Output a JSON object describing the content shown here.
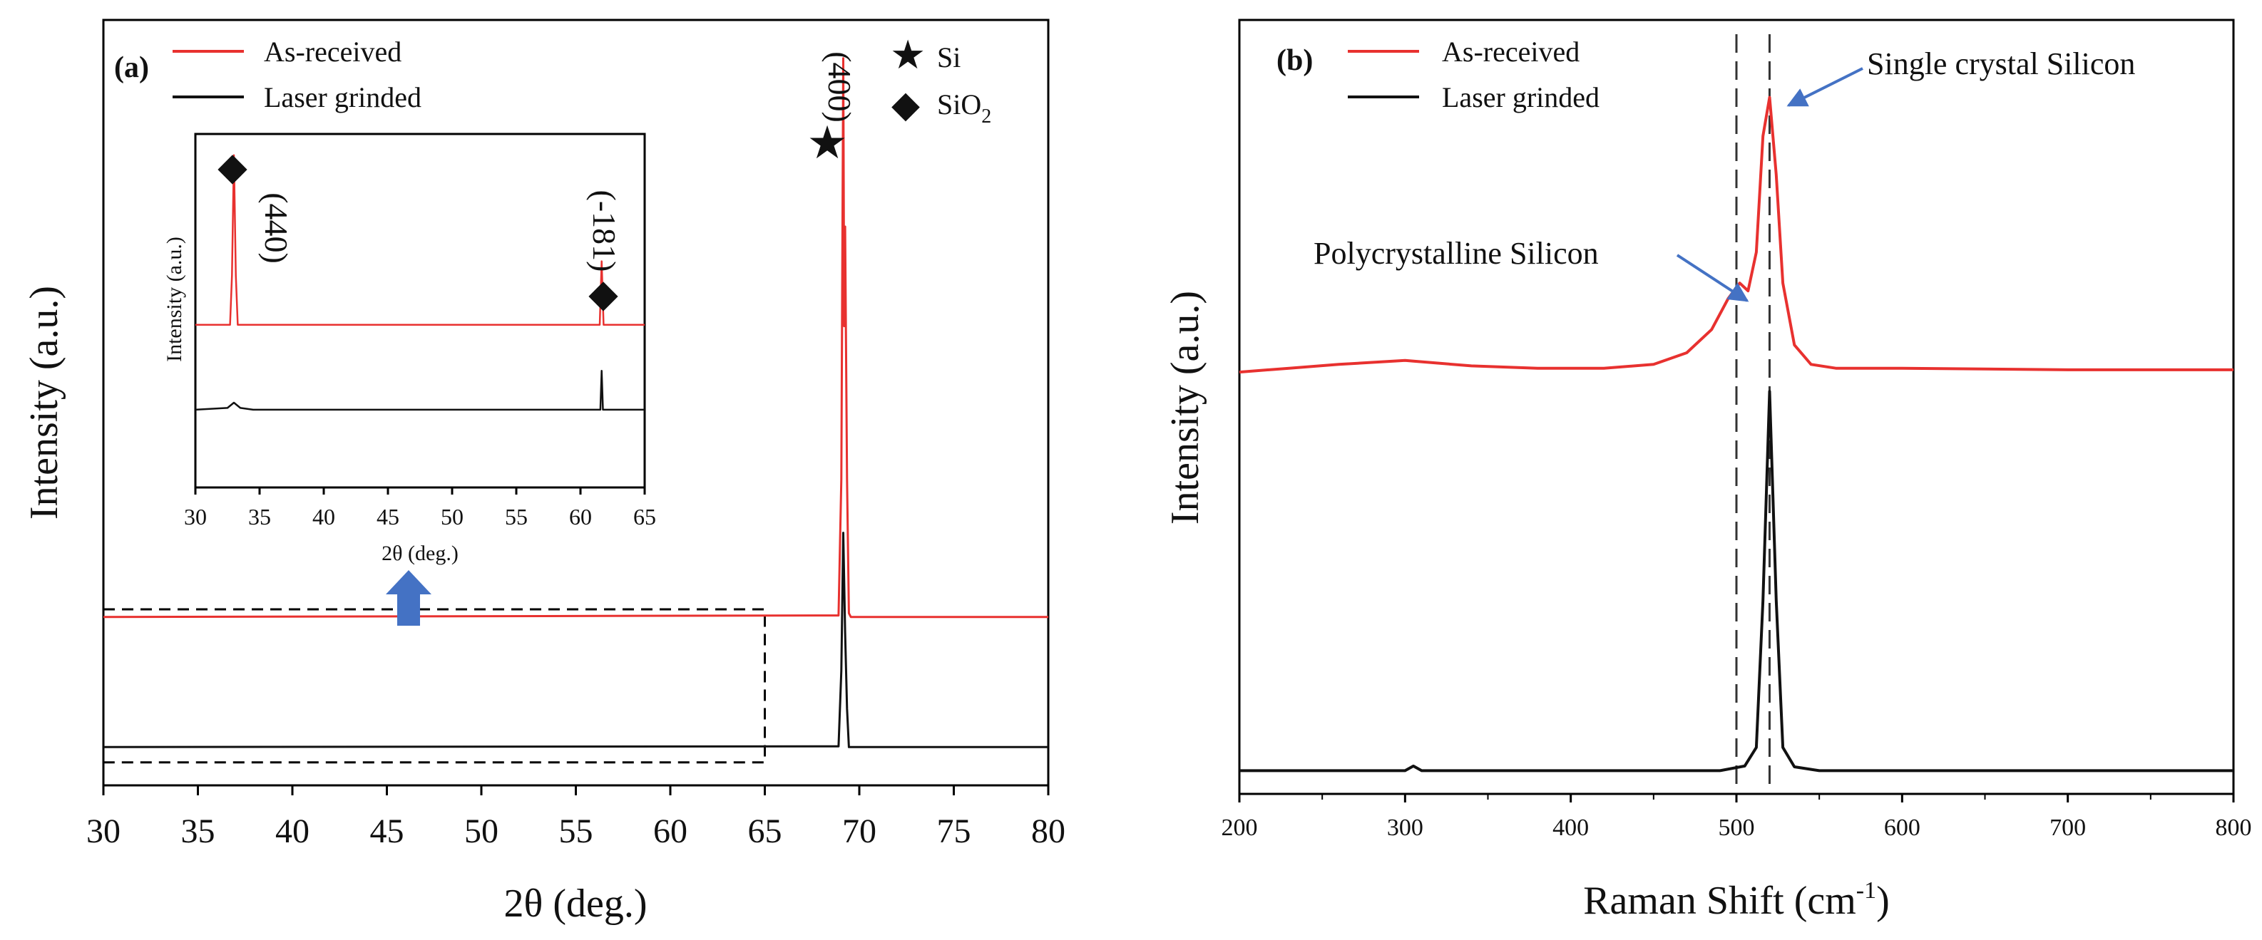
{
  "colors": {
    "as_received": "#e8312f",
    "laser_grinded": "#111111",
    "arrow": "#4472c4",
    "axis": "#000000"
  },
  "chart_data": [
    {
      "id": "panel-a",
      "type": "line",
      "panel_label": "(a)",
      "title": "",
      "xlabel": "2θ (deg.)",
      "ylabel": "Intensity (a.u.)",
      "xlim": [
        30,
        80
      ],
      "ylim": [
        0,
        100
      ],
      "x_ticks": [
        30,
        35,
        40,
        45,
        50,
        55,
        60,
        65,
        70,
        75,
        80
      ],
      "legend": [
        "As-received",
        "Laser grinded"
      ],
      "phase_legend": [
        {
          "symbol": "★",
          "label_main": "Si",
          "label_sub": ""
        },
        {
          "symbol": "◆",
          "label_main": "SiO",
          "label_sub": "2"
        }
      ],
      "series": [
        {
          "name": "As-received",
          "color": "#e8312f",
          "x": [
            30,
            68.9,
            69.05,
            69.15,
            69.2,
            69.25,
            69.35,
            69.45,
            69.55,
            80
          ],
          "y": [
            22,
            22.2,
            40,
            95,
            60,
            73,
            40,
            22.5,
            22,
            22
          ]
        },
        {
          "name": "Laser grinded",
          "color": "#111111",
          "x": [
            30,
            68.9,
            69.05,
            69.15,
            69.25,
            69.35,
            69.45,
            80
          ],
          "y": [
            5,
            5.1,
            15,
            33,
            20,
            10,
            5,
            5
          ]
        }
      ],
      "peak_labels": [
        {
          "text": "(400)",
          "symbol": "★",
          "x": 69.2
        }
      ],
      "highlight_box": {
        "x": [
          30,
          65
        ],
        "y": [
          3,
          23
        ]
      },
      "inset": {
        "xlabel": "2θ (deg.)",
        "ylabel": "Intensity (a.u.)",
        "xlim": [
          30,
          65
        ],
        "ylim": [
          0,
          100
        ],
        "x_ticks": [
          30,
          35,
          40,
          45,
          50,
          55,
          60,
          65
        ],
        "peak_labels": [
          {
            "text": "(440)",
            "symbol": "◆",
            "x": 33.0
          },
          {
            "text": "(-181)",
            "symbol": "◆",
            "x": 61.7
          }
        ],
        "series": [
          {
            "name": "As-received",
            "color": "#e8312f",
            "x": [
              30,
              32.7,
              32.85,
              33.0,
              33.15,
              33.3,
              61.5,
              61.65,
              61.8,
              65
            ],
            "y": [
              46,
              46,
              60,
              94,
              60,
              46,
              46,
              64,
              46,
              46
            ]
          },
          {
            "name": "Laser grinded",
            "color": "#111111",
            "x": [
              30,
              32.5,
              33.0,
              33.5,
              34.5,
              61.55,
              61.65,
              61.75,
              65
            ],
            "y": [
              22,
              22.5,
              24,
              22.5,
              22,
              22,
              33,
              22,
              22
            ]
          }
        ]
      }
    },
    {
      "id": "panel-b",
      "type": "line",
      "panel_label": "(b)",
      "title": "",
      "xlabel_main": "Raman Shift (cm",
      "xlabel_sup": "-1",
      "xlabel_end": ")",
      "ylabel": "Intensity (a.u.)",
      "xlim": [
        200,
        800
      ],
      "ylim": [
        0,
        100
      ],
      "x_ticks": [
        200,
        300,
        400,
        500,
        600,
        700,
        800
      ],
      "legend": [
        "As-received",
        "Laser grinded"
      ],
      "reference_lines": [
        500,
        520
      ],
      "annotations": [
        {
          "text": "Single crystal Silicon",
          "target_x": 520
        },
        {
          "text": "Polycrystalline Silicon",
          "target_x": 502
        }
      ],
      "series": [
        {
          "name": "As-received",
          "color": "#e8312f",
          "x": [
            200,
            230,
            260,
            300,
            340,
            380,
            420,
            450,
            470,
            485,
            495,
            502,
            507,
            512,
            516,
            520,
            524,
            528,
            535,
            545,
            560,
            600,
            700,
            800
          ],
          "y": [
            54.5,
            55,
            55.5,
            56,
            55.3,
            55,
            55,
            55.5,
            57,
            60,
            64,
            66,
            65,
            70,
            85,
            90,
            80,
            66,
            58,
            55.5,
            55,
            55,
            54.8,
            54.8
          ]
        },
        {
          "name": "Laser grinded",
          "color": "#111111",
          "x": [
            200,
            300,
            305,
            310,
            400,
            490,
            505,
            512,
            516,
            520,
            524,
            528,
            535,
            550,
            600,
            700,
            800
          ],
          "y": [
            3,
            3,
            3.6,
            3,
            3,
            3,
            3.6,
            6,
            25,
            52,
            25,
            6,
            3.5,
            3,
            3,
            3,
            3
          ]
        }
      ]
    }
  ]
}
